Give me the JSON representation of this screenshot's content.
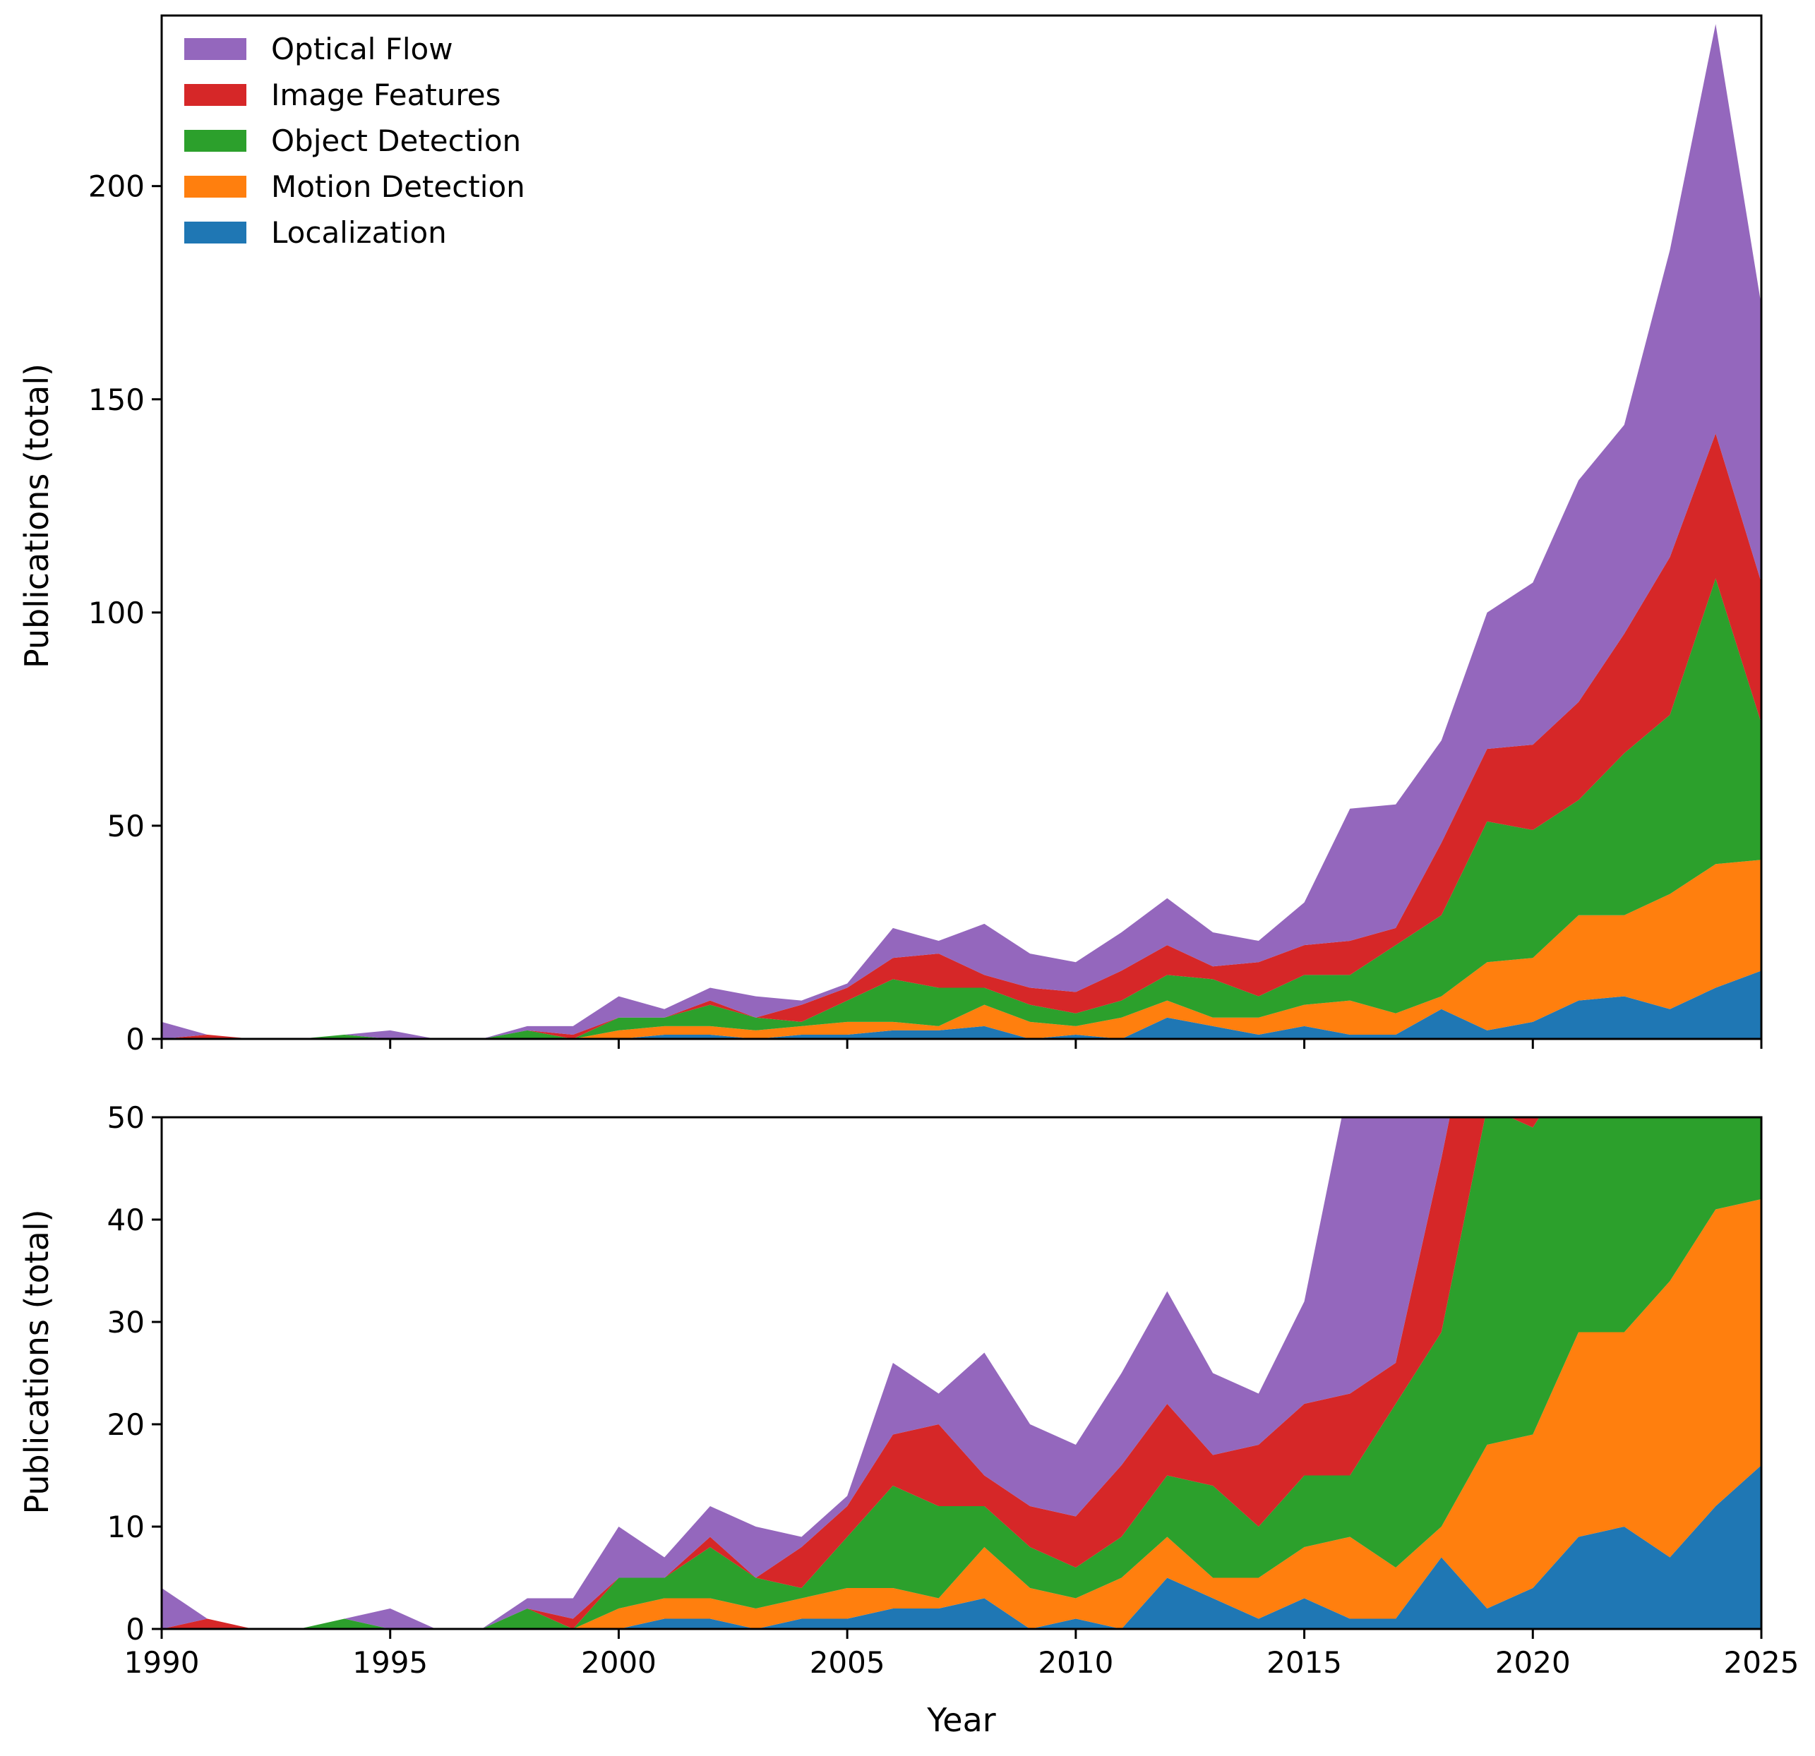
{
  "chart_data": [
    {
      "type": "area",
      "stacked": true,
      "panel": "top",
      "xlabel": "",
      "ylabel": "Publications (total)",
      "xlim": [
        1990,
        2025
      ],
      "ylim": [
        0,
        240
      ],
      "xticks": [
        1990,
        1995,
        2000,
        2005,
        2010,
        2015,
        2020,
        2025
      ],
      "yticks": [
        0,
        50,
        100,
        150,
        200
      ],
      "show_xtick_labels": false,
      "grid": false,
      "legend": "top-left"
    },
    {
      "type": "area",
      "stacked": true,
      "panel": "bottom",
      "xlabel": "Year",
      "ylabel": "Publications (total)",
      "xlim": [
        1990,
        2025
      ],
      "ylim": [
        0,
        50
      ],
      "xticks": [
        1990,
        1995,
        2000,
        2005,
        2010,
        2015,
        2020,
        2025
      ],
      "yticks": [
        0,
        10,
        20,
        30,
        40,
        50
      ],
      "show_xtick_labels": true,
      "grid": false,
      "legend": "none"
    }
  ],
  "series_data": {
    "x": [
      1990,
      1991,
      1992,
      1993,
      1994,
      1995,
      1996,
      1997,
      1998,
      1999,
      2000,
      2001,
      2002,
      2003,
      2004,
      2005,
      2006,
      2007,
      2008,
      2009,
      2010,
      2011,
      2012,
      2013,
      2014,
      2015,
      2016,
      2017,
      2018,
      2019,
      2020,
      2021,
      2022,
      2023,
      2024,
      2025
    ],
    "series": [
      {
        "name": "Localization",
        "color": "#1f77b4",
        "values": [
          0,
          0,
          0,
          0,
          0,
          0,
          0,
          0,
          0,
          0,
          0,
          1,
          1,
          0,
          1,
          1,
          2,
          2,
          3,
          0,
          1,
          0,
          5,
          3,
          1,
          3,
          1,
          1,
          7,
          2,
          4,
          9,
          10,
          7,
          12,
          16
        ]
      },
      {
        "name": "Motion Detection",
        "color": "#ff7f0e",
        "values": [
          0,
          0,
          0,
          0,
          0,
          0,
          0,
          0,
          0,
          0,
          2,
          2,
          2,
          2,
          2,
          3,
          2,
          1,
          5,
          4,
          2,
          5,
          4,
          2,
          4,
          5,
          8,
          5,
          3,
          16,
          15,
          20,
          19,
          27,
          29,
          26
        ]
      },
      {
        "name": "Object Detection",
        "color": "#2ca02c",
        "values": [
          0,
          0,
          0,
          0,
          1,
          0,
          0,
          0,
          2,
          0,
          3,
          2,
          5,
          3,
          1,
          5,
          10,
          9,
          4,
          4,
          3,
          4,
          6,
          9,
          5,
          7,
          6,
          16,
          19,
          33,
          30,
          27,
          38,
          42,
          67,
          32
        ]
      },
      {
        "name": "Image Features",
        "color": "#d62728",
        "values": [
          0,
          1,
          0,
          0,
          0,
          0,
          0,
          0,
          0,
          1,
          0,
          0,
          1,
          0,
          4,
          3,
          5,
          8,
          3,
          4,
          5,
          7,
          7,
          3,
          8,
          7,
          8,
          4,
          17,
          17,
          20,
          23,
          28,
          37,
          34,
          33
        ]
      },
      {
        "name": "Optical Flow",
        "color": "#9467bd",
        "values": [
          4,
          0,
          0,
          0,
          0,
          2,
          0,
          0,
          1,
          2,
          5,
          2,
          3,
          5,
          1,
          1,
          7,
          3,
          12,
          8,
          7,
          9,
          11,
          8,
          5,
          10,
          31,
          29,
          24,
          32,
          38,
          52,
          49,
          72,
          96,
          65
        ]
      }
    ]
  }
}
